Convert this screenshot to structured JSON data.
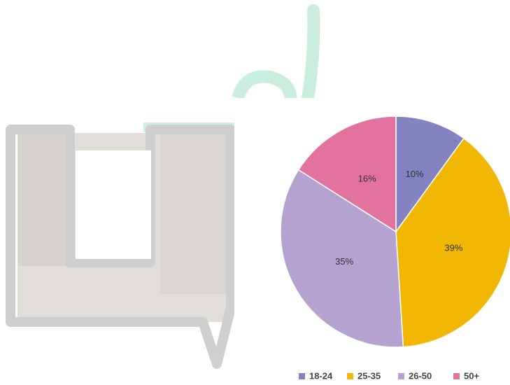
{
  "chart_data": {
    "type": "pie",
    "categories": [
      "18-24",
      "25-35",
      "26-50",
      "50+"
    ],
    "values": [
      10,
      39,
      35,
      16
    ],
    "value_labels": [
      "10%",
      "39%",
      "35%",
      "16%"
    ],
    "colors": [
      "#8383c2",
      "#f2b705",
      "#b4a3d0",
      "#e2739e"
    ],
    "legend": "bottom"
  }
}
